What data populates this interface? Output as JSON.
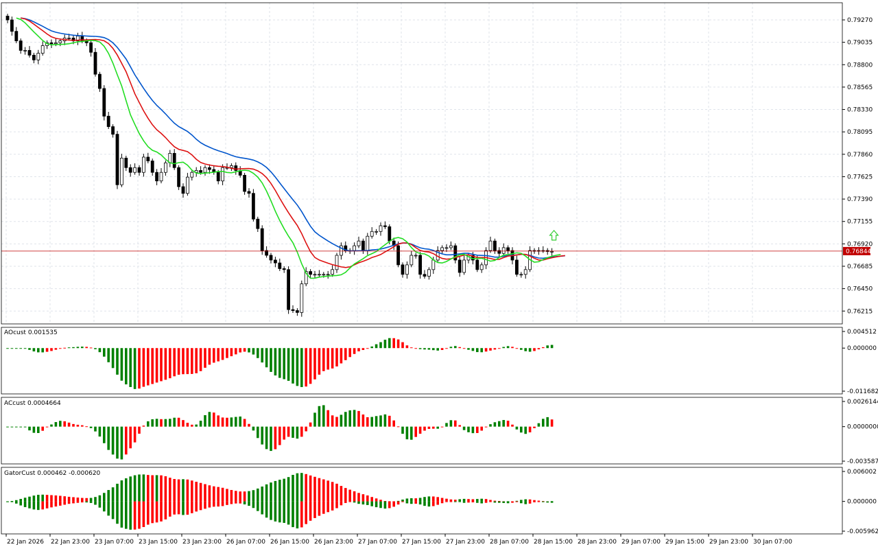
{
  "chart_data": [
    {
      "type": "candlestick",
      "pane": "price",
      "ylim": [
        0.7608,
        0.7945
      ],
      "y_ticks": [
        "0.79270",
        "0.79035",
        "0.78800",
        "0.78565",
        "0.78330",
        "0.78095",
        "0.77860",
        "0.77625",
        "0.77390",
        "0.77155",
        "0.76920",
        "0.76685",
        "0.76450",
        "0.76215"
      ],
      "y_tick_values": [
        0.7927,
        0.79035,
        0.788,
        0.78565,
        0.7833,
        0.78095,
        0.7786,
        0.77625,
        0.7739,
        0.77155,
        0.7692,
        0.76685,
        0.7645,
        0.76215
      ],
      "current_price": "0.76844",
      "current_price_value": 0.76844,
      "x_ticks": [
        "22 Jan 2026",
        "22 Jan 23:00",
        "23 Jan 07:00",
        "23 Jan 15:00",
        "23 Jan 23:00",
        "26 Jan 07:00",
        "26 Jan 15:00",
        "26 Jan 23:00",
        "27 Jan 07:00",
        "27 Jan 15:00",
        "27 Jan 23:00",
        "28 Jan 07:00",
        "28 Jan 15:00",
        "28 Jan 23:00",
        "29 Jan 07:00",
        "29 Jan 15:00",
        "29 Jan 23:00",
        "30 Jan 07:00"
      ],
      "x_tick_bars": [
        0,
        10,
        20,
        30,
        40,
        50,
        60,
        70,
        80,
        90,
        100,
        110,
        120,
        130,
        140,
        150,
        160,
        170
      ],
      "closes": [
        0.7927,
        0.7915,
        0.7905,
        0.7895,
        0.7895,
        0.789,
        0.7885,
        0.7892,
        0.79,
        0.7903,
        0.7902,
        0.7903,
        0.7905,
        0.7908,
        0.7908,
        0.7905,
        0.791,
        0.7905,
        0.7903,
        0.7893,
        0.787,
        0.7855,
        0.7826,
        0.7815,
        0.7807,
        0.7754,
        0.7782,
        0.7772,
        0.7767,
        0.7772,
        0.7767,
        0.7783,
        0.7779,
        0.7767,
        0.7758,
        0.7767,
        0.7777,
        0.7787,
        0.7772,
        0.7752,
        0.7745,
        0.7762,
        0.7767,
        0.7769,
        0.7767,
        0.7772,
        0.777,
        0.7767,
        0.7758,
        0.7772,
        0.7772,
        0.7774,
        0.7769,
        0.7764,
        0.7747,
        0.7745,
        0.7718,
        0.7708,
        0.7685,
        0.768,
        0.7675,
        0.7672,
        0.7666,
        0.7665,
        0.7623,
        0.7622,
        0.762,
        0.765,
        0.7663,
        0.766,
        0.766,
        0.766,
        0.766,
        0.766,
        0.7665,
        0.768,
        0.769,
        0.7685,
        0.7685,
        0.769,
        0.7695,
        0.7685,
        0.77,
        0.7705,
        0.7705,
        0.7711,
        0.771,
        0.7695,
        0.769,
        0.767,
        0.766,
        0.767,
        0.768,
        0.768,
        0.766,
        0.7658,
        0.7665,
        0.7675,
        0.7685,
        0.7688,
        0.7688,
        0.769,
        0.7675,
        0.7662,
        0.7675,
        0.768,
        0.7675,
        0.7665,
        0.767,
        0.7685,
        0.7695,
        0.7685,
        0.7682,
        0.7688,
        0.7685,
        0.7675,
        0.766,
        0.766,
        0.7665,
        0.7685,
        0.7685,
        0.7685,
        0.7685,
        0.7684,
        0.7684
      ],
      "overlays": [
        {
          "name": "Alligator Jaw",
          "color": "#0055cc"
        },
        {
          "name": "Alligator Teeth",
          "color": "#dd1111"
        },
        {
          "name": "Alligator Lips",
          "color": "#22dd22"
        }
      ],
      "signal": "up-arrow"
    },
    {
      "type": "bar",
      "pane": "oscillator",
      "title": "AOcust 0.001535",
      "ylim": [
        -0.011682,
        0.004512
      ],
      "y_ticks": [
        "0.004512",
        "0.000000",
        "-0.011682"
      ],
      "y_tick_values": [
        0.004512,
        0.0,
        -0.011682
      ]
    },
    {
      "type": "bar",
      "pane": "oscillator",
      "title": "ACcust 0.0004664",
      "ylim": [
        -0.0035877,
        0.0026144
      ],
      "y_ticks": [
        "0.0026144",
        "0.0000000",
        "-0.0035877"
      ],
      "y_tick_values": [
        0.0026144,
        0.0,
        -0.0035877
      ]
    },
    {
      "type": "bar",
      "pane": "oscillator",
      "title": "GatorCust 0.000462 -0.000620",
      "ylim": [
        -0.005962,
        0.006002
      ],
      "y_ticks": [
        "0.006002",
        "0.000000",
        "-0.005962"
      ],
      "y_tick_values": [
        0.006002,
        0.0,
        -0.005962
      ]
    }
  ],
  "colors": {
    "up": "#008000",
    "down": "#ff0000",
    "candle_bull": "#ffffff",
    "candle_bear": "#000000",
    "price_line": "#c00000",
    "signal": "#33cc33"
  }
}
